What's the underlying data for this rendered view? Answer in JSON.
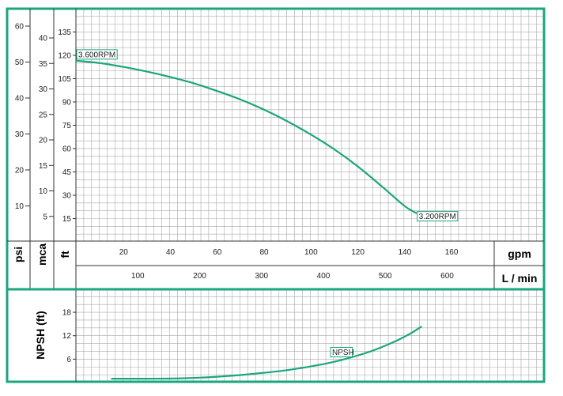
{
  "colors": {
    "border": "#1aa67e",
    "curve": "#1aa67e",
    "grid": "#a9a9a9",
    "text": "#222222"
  },
  "units": {
    "psi": "psi",
    "mca": "mca",
    "ft": "ft",
    "gpm": "gpm",
    "lmin": "L / min",
    "npsh": "NPSH (ft)"
  },
  "chart_data": [
    {
      "type": "line",
      "panel": "pump-head-curve",
      "title": "",
      "xlabel": "gpm",
      "x_secondary_label": "L / min",
      "ylabel": "ft",
      "y_secondary_labels": [
        "psi",
        "mca"
      ],
      "xlim": [
        0,
        190
      ],
      "ylim": [
        0,
        141
      ],
      "x_ticks_gpm": [
        20,
        40,
        60,
        80,
        100,
        120,
        140,
        160
      ],
      "x_ticks_lmin": [
        100,
        200,
        300,
        400,
        500,
        600
      ],
      "y_ticks_ft": [
        15,
        30,
        45,
        60,
        75,
        90,
        105,
        120,
        135
      ],
      "y_ticks_psi": [
        10,
        20,
        30,
        40,
        50,
        60
      ],
      "y_ticks_mca": [
        5,
        10,
        15,
        20,
        25,
        30,
        35,
        40
      ],
      "grid": true,
      "series": [
        {
          "x": [
            0,
            10,
            20,
            30,
            40,
            50,
            60,
            70,
            80,
            90,
            100,
            110,
            120,
            130,
            140,
            145
          ],
          "y": [
            116.5,
            115,
            112.5,
            109.5,
            106,
            102,
            97,
            91.5,
            85,
            77.5,
            69,
            59.5,
            48.5,
            36,
            23,
            18.5
          ]
        }
      ],
      "annotations": [
        {
          "text": "3.600RPM",
          "x": 0,
          "y": 116.5
        },
        {
          "text": "3.200RPM",
          "x": 145,
          "y": 18.5
        }
      ]
    },
    {
      "type": "line",
      "panel": "npsh-curve",
      "title": "",
      "xlabel": "",
      "ylabel": "NPSH (ft)",
      "xlim": [
        0,
        190
      ],
      "ylim": [
        0,
        24
      ],
      "y_ticks": [
        6,
        12,
        18
      ],
      "grid": true,
      "series": [
        {
          "name": "NPSH",
          "x": [
            15,
            30,
            45,
            60,
            75,
            90,
            105,
            115,
            125,
            135,
            142,
            147
          ],
          "y": [
            1.0,
            1.0,
            1.1,
            1.5,
            2.2,
            3.2,
            4.7,
            6.1,
            7.9,
            10.3,
            12.4,
            14.3
          ]
        }
      ],
      "annotations": [
        {
          "text": "NPSH",
          "x": 113,
          "y": 8.4
        }
      ]
    }
  ]
}
